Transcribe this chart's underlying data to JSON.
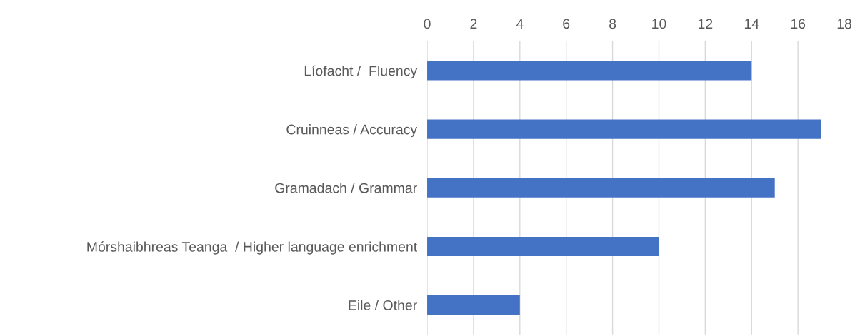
{
  "chart_data": {
    "type": "bar",
    "orientation": "horizontal",
    "categories": [
      "Líofacht /  Fluency",
      "Cruinneas / Accuracy",
      "Gramadach / Grammar",
      "Mórshaibhreas Teanga  / Higher language enrichment",
      "Eile / Other"
    ],
    "values": [
      14,
      17,
      15,
      10,
      4
    ],
    "color": "#4472c4",
    "xlim": [
      0,
      18
    ],
    "xticks": [
      0,
      2,
      4,
      6,
      8,
      10,
      12,
      14,
      16,
      18
    ],
    "grid": "x"
  }
}
